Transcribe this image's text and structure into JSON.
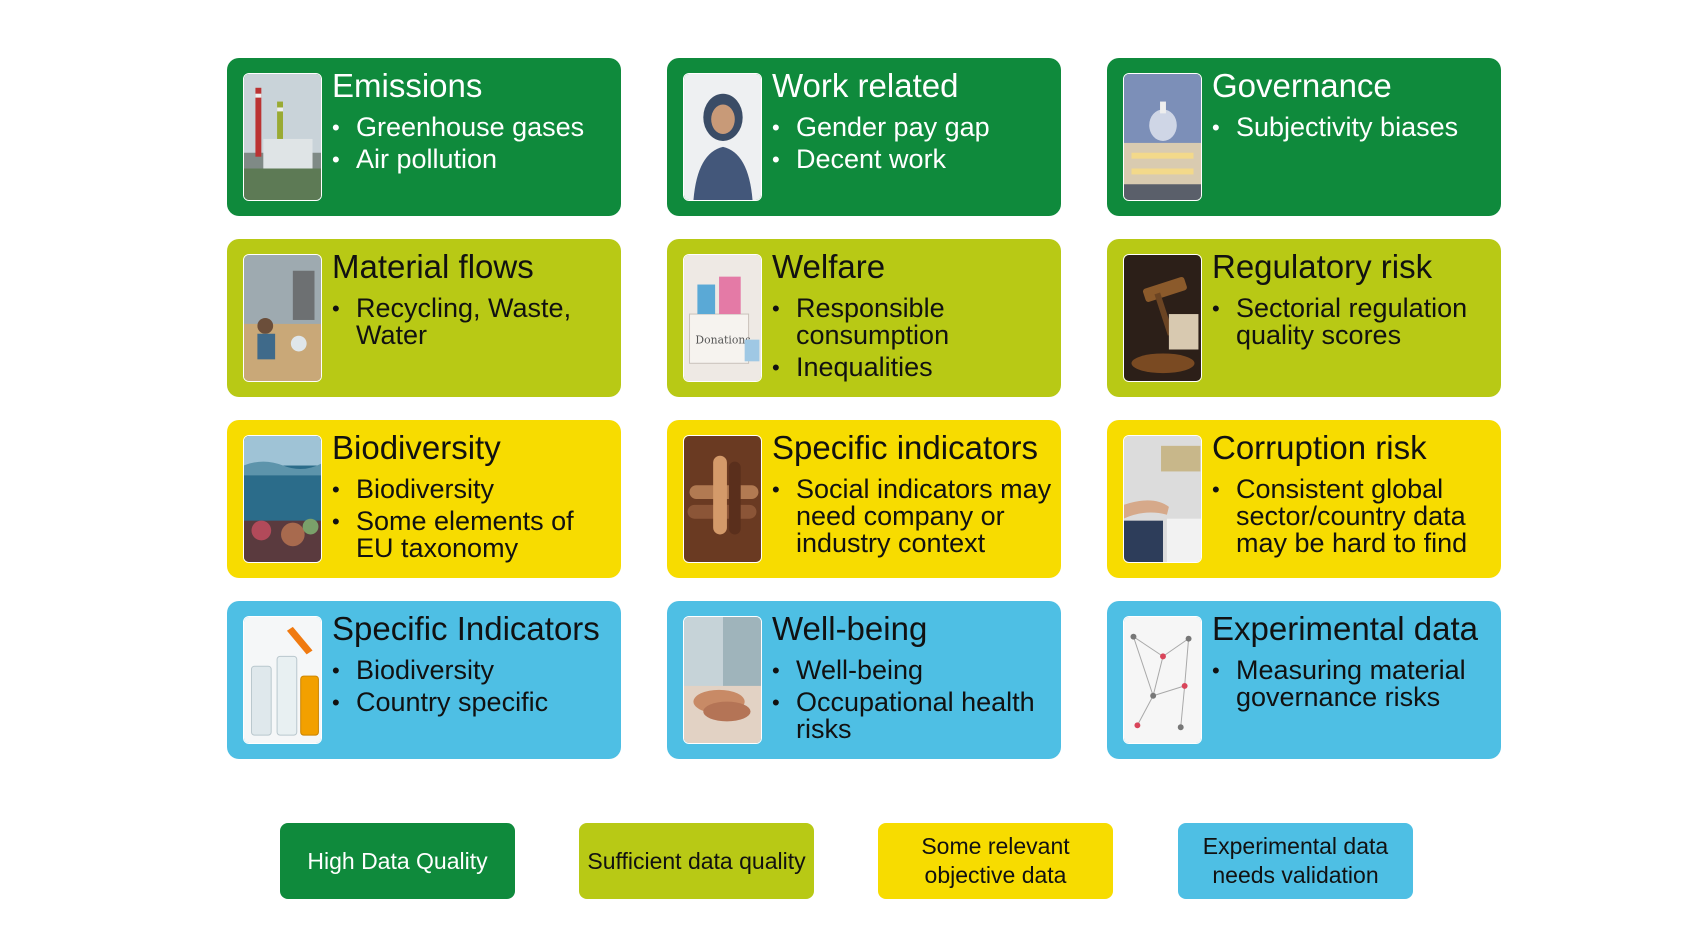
{
  "colors": {
    "high": "#0f8a3c",
    "sufficient": "#b8c915",
    "relevant": "#f7dc00",
    "experimental": "#4ebfe4"
  },
  "cards": [
    {
      "title": "Emissions",
      "bullets": [
        "Greenhouse gases",
        "Air pollution"
      ],
      "image": "power-plant-image",
      "level": "high"
    },
    {
      "title": "Work related",
      "bullets": [
        "Gender pay gap",
        "Decent work"
      ],
      "image": "woman-worker-image",
      "level": "high"
    },
    {
      "title": "Governance",
      "bullets": [
        "Subjectivity biases"
      ],
      "image": "government-building-image",
      "level": "high"
    },
    {
      "title": "Material flows",
      "bullets": [
        "Recycling, Waste, Water"
      ],
      "image": "waste-collection-image",
      "level": "sufficient"
    },
    {
      "title": "Welfare",
      "bullets": [
        "Responsible consumption",
        "Inequalities"
      ],
      "image": "donations-box-image",
      "level": "sufficient"
    },
    {
      "title": "Regulatory risk",
      "bullets": [
        "Sectorial regulation quality scores"
      ],
      "image": "gavel-image",
      "level": "sufficient"
    },
    {
      "title": "Biodiversity",
      "bullets": [
        "Biodiversity",
        "Some elements of EU taxonomy"
      ],
      "image": "coral-reef-image",
      "level": "relevant"
    },
    {
      "title": "Specific indicators",
      "bullets": [
        "Social indicators may need company or industry context"
      ],
      "image": "joined-hands-image",
      "level": "relevant"
    },
    {
      "title": "Corruption risk",
      "bullets": [
        "Consistent global sector/country data may be hard to find"
      ],
      "image": "bribe-handover-image",
      "level": "relevant"
    },
    {
      "title": "Specific Indicators",
      "bullets": [
        "Biodiversity",
        "Country specific"
      ],
      "image": "test-tubes-image",
      "level": "experimental"
    },
    {
      "title": "Well-being",
      "bullets": [
        "Well-being",
        "Occupational health risks"
      ],
      "image": "holding-hands-image",
      "level": "experimental"
    },
    {
      "title": "Experimental data",
      "bullets": [
        "Measuring material governance risks"
      ],
      "image": "network-graph-image",
      "level": "experimental"
    }
  ],
  "legend": [
    {
      "label": "High Data Quality",
      "level": "high"
    },
    {
      "label": "Sufficient data quality",
      "level": "sufficient"
    },
    {
      "label": "Some relevant objective data",
      "level": "relevant"
    },
    {
      "label": "Experimental data needs validation",
      "level": "experimental"
    }
  ]
}
